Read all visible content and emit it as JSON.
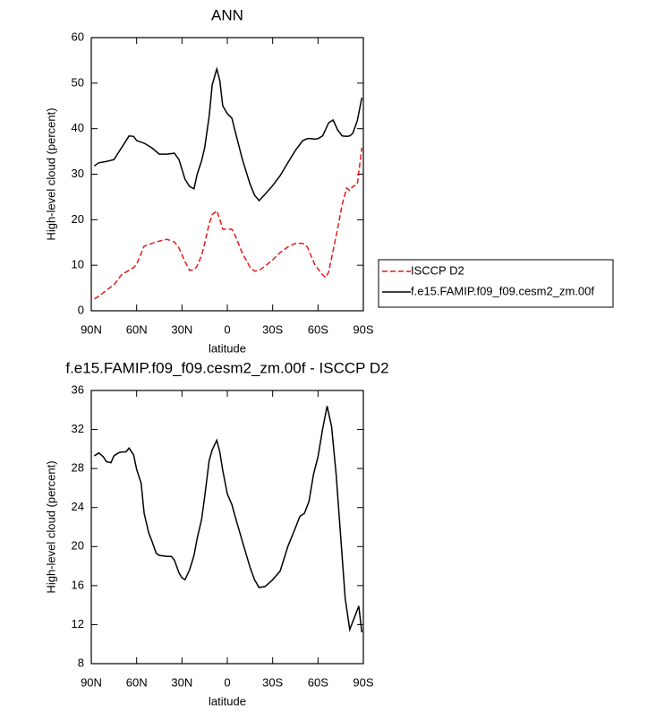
{
  "chart_data": [
    {
      "type": "line",
      "title": "ANN",
      "xlabel": "latitude",
      "ylabel": "High-level cloud (percent)",
      "x": [
        88,
        85,
        80,
        75,
        70,
        65,
        62,
        60,
        55,
        50,
        45,
        40,
        35,
        32,
        28,
        25,
        22,
        20,
        17,
        15,
        12,
        10,
        7,
        5,
        3,
        0,
        -3,
        -5,
        -10,
        -15,
        -18,
        -21,
        -25,
        -30,
        -35,
        -40,
        -45,
        -50,
        -53,
        -55,
        -58,
        -60,
        -63,
        -65,
        -67,
        -70,
        -73,
        -76,
        -79,
        -81,
        -83,
        -86,
        -89
      ],
      "xlim": [
        90,
        -90
      ],
      "xticks": [
        {
          "value": 90,
          "label": "90N"
        },
        {
          "value": 60,
          "label": "60N"
        },
        {
          "value": 30,
          "label": "30N"
        },
        0,
        {
          "value": -30,
          "label": "30S"
        },
        {
          "value": -60,
          "label": "60S"
        },
        {
          "value": -90,
          "label": "90S"
        }
      ],
      "ylim": [
        0,
        60
      ],
      "yticks": [
        0,
        10,
        20,
        30,
        40,
        50,
        60
      ],
      "legend": "right",
      "series": [
        {
          "name": "ISCCP D2",
          "color": "#e41a1c",
          "line_style": "dashed",
          "values": [
            2.6,
            3.2,
            4.5,
            5.7,
            7.9,
            8.9,
            9.5,
            10.2,
            14.2,
            14.8,
            15.3,
            15.7,
            15.1,
            13.8,
            10.8,
            8.9,
            9,
            9.8,
            12.2,
            14.8,
            19.1,
            21.1,
            22,
            20.1,
            17.9,
            17.9,
            17.9,
            16.7,
            12.6,
            9.6,
            8.7,
            8.9,
            9.8,
            11.2,
            12.8,
            14,
            14.8,
            14.8,
            14,
            12.4,
            10,
            9.2,
            7.9,
            7.3,
            8.5,
            13.2,
            18.1,
            23.4,
            27,
            26.4,
            27.3,
            27.7,
            35.8
          ]
        },
        {
          "name": "f.e15.FAMIP.f09_f09.cesm2_zm.00f",
          "color": "#000000",
          "line_style": "solid",
          "values": [
            31.8,
            32.5,
            32.8,
            33.2,
            35.8,
            38.4,
            38.3,
            37.4,
            36.8,
            35.8,
            34.4,
            34.4,
            34.6,
            33.2,
            28.9,
            27.3,
            26.8,
            29.9,
            33,
            35.8,
            42.7,
            49.6,
            53.1,
            50.6,
            45,
            43.3,
            42.3,
            39.7,
            33.2,
            27.9,
            25.4,
            24.2,
            25.6,
            27.5,
            29.7,
            32.5,
            35.2,
            37.4,
            37.8,
            37.8,
            37.7,
            37.8,
            38.4,
            39.8,
            41.3,
            41.9,
            39.7,
            38.4,
            38.3,
            38.4,
            39,
            41.7,
            46.8
          ]
        }
      ]
    },
    {
      "type": "line",
      "title": "f.e15.FAMIP.f09_f09.cesm2_zm.00f - ISCCP D2",
      "xlabel": "latitude",
      "ylabel": "High-level cloud (percent)",
      "x": [
        88,
        85,
        82,
        80,
        77,
        75,
        72,
        70,
        67,
        65,
        62,
        60,
        57,
        55,
        52,
        50,
        47,
        45,
        40,
        37,
        35,
        32,
        30,
        28,
        25,
        22,
        20,
        17,
        15,
        12,
        10,
        7,
        5,
        3,
        0,
        -3,
        -5,
        -10,
        -15,
        -18,
        -21,
        -25,
        -30,
        -35,
        -40,
        -45,
        -48,
        -51,
        -54,
        -57,
        -60,
        -63,
        -66,
        -69,
        -72,
        -75,
        -78,
        -81,
        -84,
        -87,
        -89
      ],
      "xlim": [
        90,
        -90
      ],
      "xticks": [
        {
          "value": 90,
          "label": "90N"
        },
        {
          "value": 60,
          "label": "60N"
        },
        {
          "value": 30,
          "label": "30N"
        },
        0,
        {
          "value": -30,
          "label": "30S"
        },
        {
          "value": -60,
          "label": "60S"
        },
        {
          "value": -90,
          "label": "90S"
        }
      ],
      "ylim": [
        8,
        36
      ],
      "yticks": [
        8,
        12,
        16,
        20,
        24,
        28,
        32,
        36
      ],
      "series": [
        {
          "color": "#000000",
          "line_style": "solid",
          "values": [
            29.3,
            29.6,
            29.2,
            28.7,
            28.6,
            29.3,
            29.6,
            29.7,
            29.7,
            30.1,
            29.4,
            27.9,
            26.5,
            23.4,
            21.4,
            20.6,
            19.3,
            19.1,
            19,
            19,
            18.6,
            17.3,
            16.8,
            16.6,
            17.6,
            19.1,
            20.8,
            22.8,
            25.1,
            28.8,
            29.9,
            30.9,
            29.7,
            27.8,
            25.4,
            24.3,
            23.2,
            20.5,
            17.9,
            16.6,
            15.8,
            15.9,
            16.6,
            17.5,
            20,
            21.9,
            23.1,
            23.4,
            24.6,
            27.4,
            29.2,
            32,
            34.4,
            32.3,
            27.4,
            21,
            14.7,
            11.5,
            12.7,
            13.9,
            11.2
          ]
        }
      ]
    }
  ]
}
